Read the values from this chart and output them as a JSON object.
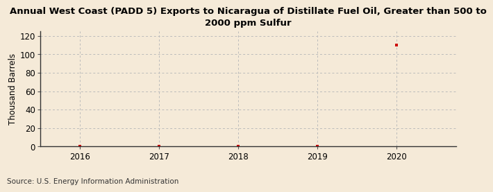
{
  "title": "Annual West Coast (PADD 5) Exports to Nicaragua of Distillate Fuel Oil, Greater than 500 to\n2000 ppm Sulfur",
  "ylabel": "Thousand Barrels",
  "source": "Source: U.S. Energy Information Administration",
  "background_color": "#f5ead8",
  "data_x": [
    2016,
    2017,
    2018,
    2019,
    2020
  ],
  "data_y": [
    0,
    0,
    0,
    0,
    110
  ],
  "marker_color": "#cc0000",
  "xlim": [
    2015.5,
    2020.75
  ],
  "ylim": [
    0,
    125
  ],
  "yticks": [
    0,
    20,
    40,
    60,
    80,
    100,
    120
  ],
  "xticks": [
    2016,
    2017,
    2018,
    2019,
    2020
  ],
  "grid_color": "#bbbbbb",
  "title_fontsize": 9.5,
  "label_fontsize": 8.5,
  "tick_fontsize": 8.5,
  "source_fontsize": 7.5
}
